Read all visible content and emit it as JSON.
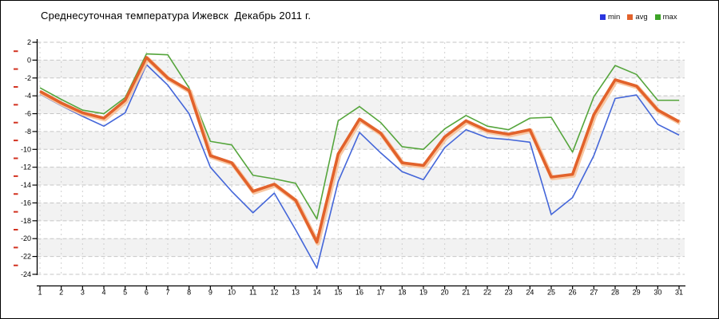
{
  "header": {
    "title": "Среднесуточная температура Ижевск  Декабрь 2011 г."
  },
  "legend": {
    "items": [
      {
        "label": "min",
        "color": "#2a35df"
      },
      {
        "label": "avg",
        "color": "#e2622b"
      },
      {
        "label": "max",
        "color": "#3da428"
      }
    ]
  },
  "chart_data": {
    "type": "line",
    "title": "Среднесуточная температура Ижевск  Декабрь 2011 г.",
    "xlabel": "",
    "ylabel": "",
    "x_labels": [
      "1",
      "2",
      "3",
      "4",
      "5",
      "6",
      "7",
      "8",
      "9",
      "10",
      "11",
      "12",
      "13",
      "14",
      "15",
      "16",
      "17",
      "18",
      "19",
      "20",
      "21",
      "22",
      "23",
      "24",
      "25",
      "26",
      "27",
      "28",
      "29",
      "30",
      "31"
    ],
    "yticks": [
      2,
      0,
      -2,
      -4,
      -6,
      -8,
      -10,
      -12,
      -14,
      -16,
      -18,
      -20,
      -22,
      -24
    ],
    "ytick_labels": [
      "2",
      "0",
      "-2",
      "-4",
      "-6",
      "-8",
      "-10",
      "-12",
      "-14",
      "-16",
      "-18",
      "-20",
      "-22",
      "-24"
    ],
    "ylim": [
      -24,
      2
    ],
    "grid": true,
    "legend_position": "top-right",
    "plot_band_color": "#f2f2f2",
    "grid_color_h": "#c6c6c6",
    "grid_color_v": "#d0d0d0",
    "axis_color": "#000000",
    "minor_tick_color": "#d23220",
    "series": [
      {
        "name": "min",
        "color": "#4466d9",
        "values": [
          -3.8,
          -5.1,
          -6.3,
          -7.4,
          -5.9,
          -0.5,
          -2.8,
          -6.0,
          -12.0,
          -14.7,
          -17.1,
          -14.9,
          -19.0,
          -23.3,
          -13.6,
          -8.1,
          -10.4,
          -12.5,
          -13.4,
          -9.8,
          -7.8,
          -8.7,
          -8.9,
          -9.2,
          -17.3,
          -15.4,
          -10.7,
          -4.3,
          -3.9,
          -7.2,
          -8.4
        ]
      },
      {
        "name": "avg",
        "color": "#e2622b",
        "glow": "#f8c7a2",
        "values": [
          -3.5,
          -4.8,
          -5.9,
          -6.5,
          -4.5,
          0.3,
          -2.0,
          -3.4,
          -10.7,
          -11.5,
          -14.7,
          -13.9,
          -15.7,
          -20.4,
          -10.5,
          -6.6,
          -8.2,
          -11.5,
          -11.8,
          -8.6,
          -6.8,
          -7.9,
          -8.3,
          -7.8,
          -13.1,
          -12.8,
          -6.1,
          -2.2,
          -2.9,
          -5.6,
          -6.9
        ]
      },
      {
        "name": "max",
        "color": "#55a53c",
        "values": [
          -3.1,
          -4.4,
          -5.6,
          -6.0,
          -4.2,
          0.7,
          0.6,
          -3.1,
          -9.1,
          -9.5,
          -12.9,
          -13.3,
          -13.8,
          -17.8,
          -6.8,
          -5.2,
          -7.0,
          -9.7,
          -10.0,
          -7.7,
          -6.2,
          -7.4,
          -7.8,
          -6.5,
          -6.4,
          -10.3,
          -4.1,
          -0.6,
          -1.6,
          -4.5,
          -4.5
        ]
      }
    ]
  }
}
